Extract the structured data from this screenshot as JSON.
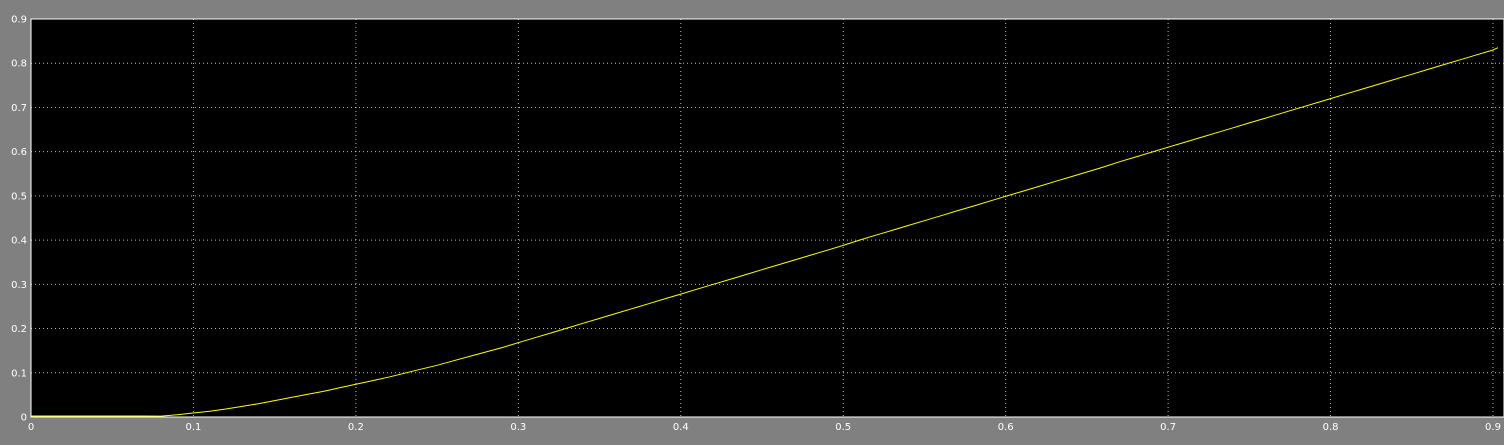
{
  "chart_data": {
    "type": "line",
    "title": "",
    "xlabel": "",
    "ylabel": "",
    "xlim": [
      0,
      0.9
    ],
    "ylim": [
      0,
      0.9
    ],
    "x_ticks": [
      "0",
      "0.1",
      "0.2",
      "0.3",
      "0.4",
      "0.5",
      "0.6",
      "0.7",
      "0.8",
      "0.9"
    ],
    "y_ticks": [
      "0",
      "0.1",
      "0.2",
      "0.3",
      "0.4",
      "0.5",
      "0.6",
      "0.7",
      "0.8",
      "0.9"
    ],
    "grid": true,
    "legend": "none",
    "colors": {
      "figure_background": "#808080",
      "axes_background": "#000000",
      "axes_border": "#ffffff",
      "grid": "#ffffff",
      "tick_text": "#ffffff",
      "series": "#ffff00"
    },
    "series": [
      {
        "x": [
          0,
          0.01,
          0.02,
          0.03,
          0.04,
          0.05,
          0.06,
          0.07,
          0.08,
          0.09,
          0.1,
          0.11,
          0.12,
          0.13,
          0.14,
          0.15,
          0.16,
          0.17,
          0.18,
          0.19,
          0.2,
          0.21,
          0.22,
          0.23,
          0.24,
          0.25,
          0.26,
          0.27,
          0.28,
          0.29,
          0.3,
          0.31,
          0.32,
          0.33,
          0.34,
          0.35,
          0.36,
          0.37,
          0.38,
          0.39,
          0.4,
          0.41,
          0.42,
          0.43,
          0.44,
          0.45,
          0.46,
          0.47,
          0.48,
          0.49,
          0.5,
          0.51,
          0.52,
          0.53,
          0.54,
          0.55,
          0.56,
          0.57,
          0.58,
          0.59,
          0.6,
          0.61,
          0.62,
          0.63,
          0.64,
          0.65,
          0.66,
          0.67,
          0.68,
          0.69,
          0.7,
          0.71,
          0.72,
          0.73,
          0.74,
          0.75,
          0.76,
          0.77,
          0.78,
          0.79,
          0.8,
          0.81,
          0.82,
          0.83,
          0.84,
          0.85,
          0.86,
          0.87,
          0.88,
          0.89,
          0.9,
          0.903
        ],
        "y": [
          0,
          0,
          0,
          0,
          0,
          0,
          0,
          0,
          0.002,
          0.005,
          0.009,
          0.013,
          0.018,
          0.024,
          0.03,
          0.037,
          0.044,
          0.051,
          0.058,
          0.066,
          0.074,
          0.082,
          0.09,
          0.099,
          0.108,
          0.117,
          0.127,
          0.137,
          0.147,
          0.157,
          0.168,
          0.179,
          0.19,
          0.201,
          0.212,
          0.223,
          0.234,
          0.245,
          0.256,
          0.267,
          0.278,
          0.289,
          0.3,
          0.311,
          0.322,
          0.333,
          0.344,
          0.355,
          0.366,
          0.377,
          0.388,
          0.4,
          0.411,
          0.422,
          0.433,
          0.444,
          0.455,
          0.466,
          0.477,
          0.488,
          0.499,
          0.51,
          0.521,
          0.532,
          0.543,
          0.554,
          0.565,
          0.577,
          0.588,
          0.599,
          0.61,
          0.621,
          0.632,
          0.643,
          0.654,
          0.665,
          0.676,
          0.687,
          0.698,
          0.709,
          0.72,
          0.731,
          0.742,
          0.753,
          0.764,
          0.775,
          0.786,
          0.797,
          0.808,
          0.819,
          0.83,
          0.835
        ]
      }
    ]
  }
}
